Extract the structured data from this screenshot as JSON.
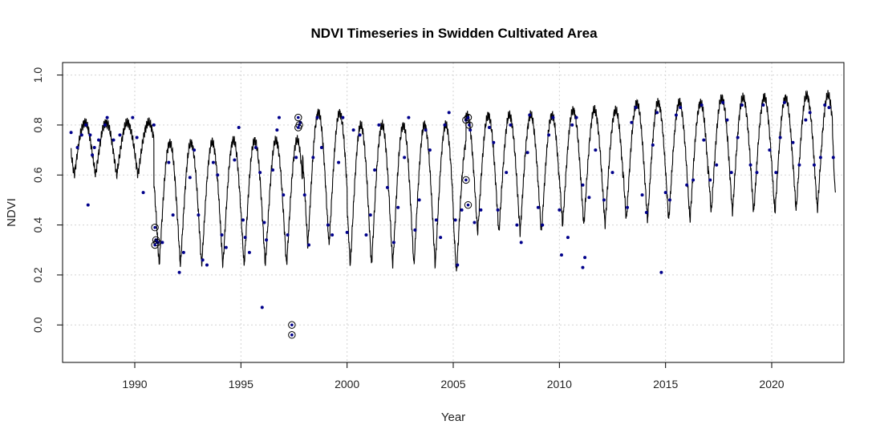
{
  "chart_data": {
    "type": "line",
    "title": "NDVI Timeseries in Swidden Cultivated Area",
    "xlabel": "Year",
    "ylabel": "NDVI",
    "xlim": [
      1986.6,
      2023.4
    ],
    "ylim": [
      -0.15,
      1.05
    ],
    "x_ticks": [
      1990,
      1995,
      2000,
      2005,
      2010,
      2015,
      2020
    ],
    "y_ticks": [
      0.0,
      0.2,
      0.4,
      0.6,
      0.8,
      1.0
    ],
    "y_tick_labels": [
      "0.0",
      "0.2",
      "0.4",
      "0.6",
      "0.8",
      "1.0"
    ],
    "grid": true,
    "line_color": "#000000",
    "point_color": "#00008b",
    "fitted_seasonal": [
      {
        "start": 1987.0,
        "end": 1990.9,
        "min": 0.6,
        "max": 0.81
      },
      {
        "start": 1990.9,
        "end": 1993.9,
        "min": 0.24,
        "max": 0.73
      },
      {
        "start": 1993.9,
        "end": 1997.9,
        "min": 0.24,
        "max": 0.74
      },
      {
        "start": 1997.9,
        "end": 2000.0,
        "min": 0.32,
        "max": 0.85
      },
      {
        "start": 2000.0,
        "end": 2005.0,
        "min": 0.24,
        "max": 0.8
      },
      {
        "start": 2005.0,
        "end": 2005.6,
        "min": 0.21,
        "max": 0.74
      },
      {
        "start": 2005.6,
        "end": 2010.0,
        "min": 0.37,
        "max": 0.84
      },
      {
        "start": 2010.0,
        "end": 2013.0,
        "min": 0.4,
        "max": 0.86
      },
      {
        "start": 2013.0,
        "end": 2017.0,
        "min": 0.42,
        "max": 0.89
      },
      {
        "start": 2017.0,
        "end": 2021.0,
        "min": 0.45,
        "max": 0.91
      },
      {
        "start": 2021.0,
        "end": 2023.0,
        "min": 0.46,
        "max": 0.92
      }
    ],
    "fitted_end_value": 0.53,
    "observations": [
      [
        1987.0,
        0.77
      ],
      [
        1987.3,
        0.71
      ],
      [
        1987.5,
        0.76
      ],
      [
        1987.7,
        0.8
      ],
      [
        1987.8,
        0.48
      ],
      [
        1987.9,
        0.76
      ],
      [
        1988.0,
        0.68
      ],
      [
        1988.1,
        0.71
      ],
      [
        1988.3,
        0.74
      ],
      [
        1988.6,
        0.8
      ],
      [
        1988.7,
        0.83
      ],
      [
        1989.0,
        0.74
      ],
      [
        1989.3,
        0.76
      ],
      [
        1989.9,
        0.83
      ],
      [
        1990.1,
        0.75
      ],
      [
        1990.4,
        0.53
      ],
      [
        1990.9,
        0.8
      ],
      [
        1991.0,
        0.34
      ],
      [
        1991.1,
        0.33
      ],
      [
        1991.3,
        0.33
      ],
      [
        1991.6,
        0.65
      ],
      [
        1991.8,
        0.44
      ],
      [
        1992.1,
        0.21
      ],
      [
        1992.3,
        0.29
      ],
      [
        1992.6,
        0.59
      ],
      [
        1992.8,
        0.7
      ],
      [
        1993.0,
        0.44
      ],
      [
        1993.2,
        0.26
      ],
      [
        1993.4,
        0.24
      ],
      [
        1993.7,
        0.65
      ],
      [
        1993.9,
        0.6
      ],
      [
        1994.1,
        0.36
      ],
      [
        1994.3,
        0.31
      ],
      [
        1994.7,
        0.66
      ],
      [
        1994.9,
        0.79
      ],
      [
        1995.1,
        0.42
      ],
      [
        1995.2,
        0.35
      ],
      [
        1995.4,
        0.29
      ],
      [
        1995.7,
        0.71
      ],
      [
        1995.9,
        0.61
      ],
      [
        1996.1,
        0.41
      ],
      [
        1996.2,
        0.34
      ],
      [
        1996.0,
        0.07
      ],
      [
        1996.5,
        0.62
      ],
      [
        1996.7,
        0.78
      ],
      [
        1996.8,
        0.83
      ],
      [
        1997.0,
        0.52
      ],
      [
        1997.2,
        0.36
      ],
      [
        1997.6,
        0.67
      ],
      [
        1997.8,
        0.81
      ],
      [
        1998.0,
        0.52
      ],
      [
        1998.2,
        0.32
      ],
      [
        1998.4,
        0.67
      ],
      [
        1998.6,
        0.83
      ],
      [
        1998.8,
        0.71
      ],
      [
        1999.1,
        0.4
      ],
      [
        1999.3,
        0.36
      ],
      [
        1999.6,
        0.65
      ],
      [
        1999.8,
        0.83
      ],
      [
        2000.0,
        0.37
      ],
      [
        2000.3,
        0.78
      ],
      [
        2000.6,
        0.76
      ],
      [
        2000.9,
        0.36
      ],
      [
        2001.1,
        0.44
      ],
      [
        2001.3,
        0.62
      ],
      [
        2001.5,
        0.8
      ],
      [
        2001.9,
        0.55
      ],
      [
        2002.2,
        0.33
      ],
      [
        2002.4,
        0.47
      ],
      [
        2002.7,
        0.67
      ],
      [
        2002.9,
        0.83
      ],
      [
        2003.2,
        0.38
      ],
      [
        2003.4,
        0.5
      ],
      [
        2003.7,
        0.78
      ],
      [
        2003.9,
        0.7
      ],
      [
        2004.2,
        0.42
      ],
      [
        2004.4,
        0.35
      ],
      [
        2004.6,
        0.8
      ],
      [
        2004.8,
        0.85
      ],
      [
        2005.1,
        0.42
      ],
      [
        2005.2,
        0.24
      ],
      [
        2005.4,
        0.46
      ],
      [
        2005.6,
        0.82
      ],
      [
        2005.8,
        0.78
      ],
      [
        2006.0,
        0.41
      ],
      [
        2006.3,
        0.46
      ],
      [
        2006.7,
        0.79
      ],
      [
        2006.9,
        0.73
      ],
      [
        2007.1,
        0.46
      ],
      [
        2007.5,
        0.61
      ],
      [
        2007.7,
        0.8
      ],
      [
        2008.0,
        0.4
      ],
      [
        2008.2,
        0.33
      ],
      [
        2008.5,
        0.69
      ],
      [
        2008.6,
        0.84
      ],
      [
        2009.0,
        0.47
      ],
      [
        2009.2,
        0.4
      ],
      [
        2009.5,
        0.76
      ],
      [
        2009.7,
        0.83
      ],
      [
        2010.0,
        0.46
      ],
      [
        2010.1,
        0.28
      ],
      [
        2010.4,
        0.35
      ],
      [
        2010.6,
        0.8
      ],
      [
        2010.8,
        0.83
      ],
      [
        2011.1,
        0.23
      ],
      [
        2011.2,
        0.27
      ],
      [
        2011.1,
        0.56
      ],
      [
        2011.4,
        0.51
      ],
      [
        2011.7,
        0.7
      ],
      [
        2012.1,
        0.5
      ],
      [
        2012.5,
        0.61
      ],
      [
        2013.2,
        0.47
      ],
      [
        2013.4,
        0.81
      ],
      [
        2013.6,
        0.87
      ],
      [
        2013.9,
        0.52
      ],
      [
        2014.1,
        0.45
      ],
      [
        2014.4,
        0.72
      ],
      [
        2014.6,
        0.85
      ],
      [
        2014.8,
        0.21
      ],
      [
        2015.0,
        0.53
      ],
      [
        2015.2,
        0.5
      ],
      [
        2015.5,
        0.84
      ],
      [
        2015.7,
        0.87
      ],
      [
        2016.0,
        0.56
      ],
      [
        2016.3,
        0.58
      ],
      [
        2016.7,
        0.88
      ],
      [
        2016.8,
        0.74
      ],
      [
        2017.1,
        0.58
      ],
      [
        2017.4,
        0.64
      ],
      [
        2017.7,
        0.89
      ],
      [
        2017.9,
        0.82
      ],
      [
        2018.1,
        0.61
      ],
      [
        2018.4,
        0.75
      ],
      [
        2018.6,
        0.88
      ],
      [
        2019.0,
        0.64
      ],
      [
        2019.3,
        0.61
      ],
      [
        2019.6,
        0.88
      ],
      [
        2019.9,
        0.7
      ],
      [
        2020.2,
        0.61
      ],
      [
        2020.4,
        0.75
      ],
      [
        2020.6,
        0.89
      ],
      [
        2021.0,
        0.73
      ],
      [
        2021.3,
        0.64
      ],
      [
        2021.6,
        0.82
      ],
      [
        2021.8,
        0.85
      ],
      [
        2022.0,
        0.64
      ],
      [
        2022.3,
        0.67
      ],
      [
        2022.5,
        0.88
      ],
      [
        2022.7,
        0.87
      ],
      [
        2022.9,
        0.67
      ]
    ],
    "circled_outliers": [
      [
        1990.95,
        0.39
      ],
      [
        1991.0,
        0.34
      ],
      [
        1991.05,
        0.33
      ],
      [
        1990.95,
        0.32
      ],
      [
        1997.4,
        0.0
      ],
      [
        1997.4,
        -0.04
      ],
      [
        1997.7,
        0.83
      ],
      [
        1997.75,
        0.8
      ],
      [
        1997.7,
        0.79
      ],
      [
        2005.6,
        0.58
      ],
      [
        2005.7,
        0.48
      ],
      [
        2005.6,
        0.82
      ],
      [
        2005.7,
        0.83
      ],
      [
        2005.75,
        0.8
      ]
    ]
  }
}
